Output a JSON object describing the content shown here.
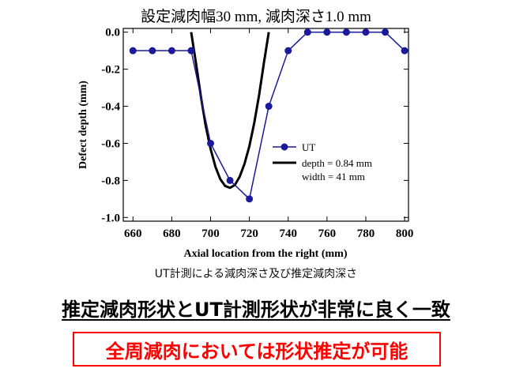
{
  "chart_data": {
    "type": "line",
    "title": "設定減肉幅30 mm, 減肉深さ1.0 mm",
    "xlabel": "Axial location from the right (mm)",
    "ylabel": "Defect depth (mm)",
    "xlim": [
      655,
      802
    ],
    "ylim": [
      -1.02,
      0.02
    ],
    "xticks": [
      660,
      680,
      700,
      720,
      740,
      760,
      780,
      800
    ],
    "yticks": [
      0.0,
      -0.2,
      -0.4,
      -0.6,
      -0.8,
      -1.0
    ],
    "xtick_labels": [
      "660",
      "680",
      "700",
      "720",
      "740",
      "760",
      "780",
      "800"
    ],
    "ytick_labels": [
      "0.0",
      "-0.2",
      "-0.4",
      "-0.6",
      "-0.8",
      "-1.0"
    ],
    "grid": false,
    "legend_position": "center-right",
    "series": [
      {
        "name": "UT",
        "color": "#1a1a9a",
        "marker": "circle",
        "x": [
          660,
          670,
          680,
          690,
          700,
          710,
          720,
          730,
          740,
          750,
          760,
          770,
          780,
          790,
          800
        ],
        "y": [
          -0.1,
          -0.1,
          -0.1,
          -0.1,
          -0.6,
          -0.8,
          -0.9,
          -0.4,
          -0.1,
          0.0,
          0.0,
          0.0,
          0.0,
          0.0,
          -0.1
        ]
      },
      {
        "name": "depth = 0.84 mm",
        "name2": "width = 41 mm",
        "color": "#000000",
        "marker": "none",
        "x": [
          690,
          692.5,
          695,
          697.5,
          700,
          702.5,
          705,
          707.5,
          710,
          712.5,
          715,
          717.5,
          720,
          722.5,
          725,
          727.5,
          730
        ],
        "y": [
          0.0,
          -0.169,
          -0.347,
          -0.506,
          -0.63,
          -0.726,
          -0.793,
          -0.83,
          -0.84,
          -0.825,
          -0.78,
          -0.71,
          -0.615,
          -0.49,
          -0.34,
          -0.165,
          0.0
        ]
      }
    ]
  },
  "text": {
    "caption": "UT計測による減肉深さ及び推定減肉深さ",
    "headline": "推定減肉形状とUT計測形状が非常に良く一致",
    "boxed_note": "全周減肉においては形状推定が可能"
  }
}
